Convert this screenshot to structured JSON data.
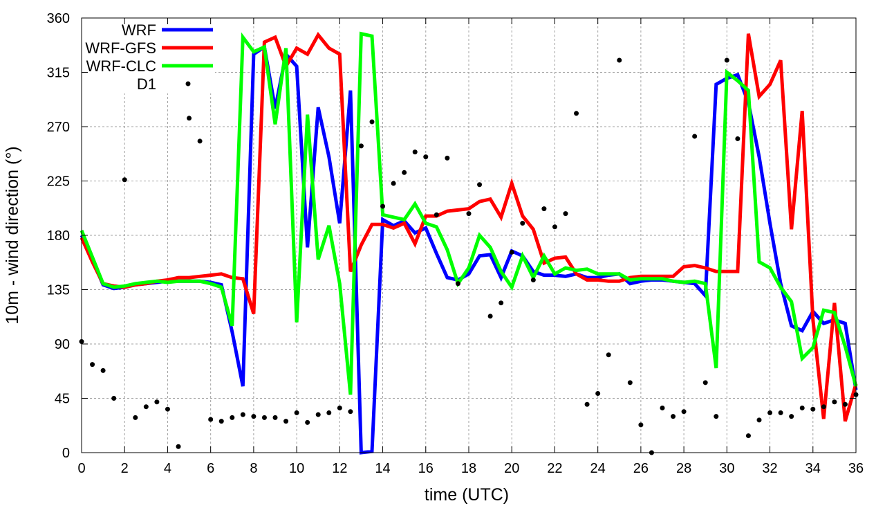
{
  "chart_data": {
    "type": "line",
    "title": "",
    "xlabel": "time (UTC)",
    "ylabel": "10m - wind direction (°)",
    "xlim": [
      0,
      36
    ],
    "ylim": [
      0,
      360
    ],
    "xticks": [
      0,
      2,
      4,
      6,
      8,
      10,
      12,
      14,
      16,
      18,
      20,
      22,
      24,
      26,
      28,
      30,
      32,
      34,
      36
    ],
    "yticks": [
      0,
      45,
      90,
      135,
      180,
      225,
      270,
      315,
      360
    ],
    "grid": true,
    "legend_position": "top-left",
    "x": [
      0,
      0.5,
      1,
      1.5,
      2,
      2.5,
      3,
      3.5,
      4,
      4.5,
      5,
      5.5,
      6,
      6.5,
      7,
      7.5,
      8,
      8.5,
      9,
      9.5,
      10,
      10.5,
      11,
      11.5,
      12,
      12.5,
      13,
      13.5,
      14,
      14.5,
      15,
      15.5,
      16,
      16.5,
      17,
      17.5,
      18,
      18.5,
      19,
      19.5,
      20,
      20.5,
      21,
      21.5,
      22,
      22.5,
      23,
      23.5,
      24,
      24.5,
      25,
      25.5,
      26,
      26.5,
      27,
      27.5,
      28,
      28.5,
      29,
      29.5,
      30,
      30.5,
      31,
      31.5,
      32,
      32.5,
      33,
      33.5,
      34,
      34.5,
      35,
      35.5,
      36
    ],
    "series": [
      {
        "name": "WRF",
        "color": "#0000ff",
        "style": "line",
        "values": [
          180,
          160,
          139,
          136,
          137,
          139,
          140,
          141,
          142,
          142,
          142,
          142,
          141,
          139,
          100,
          55,
          330,
          336,
          285,
          330,
          320,
          170,
          286,
          245,
          190,
          300,
          0,
          1,
          193,
          188,
          192,
          182,
          186,
          165,
          145,
          143,
          148,
          163,
          164,
          145,
          167,
          163,
          150,
          147,
          147,
          146,
          148,
          145,
          145,
          147,
          148,
          140,
          142,
          143,
          143,
          142,
          141,
          140,
          130,
          305,
          310,
          313,
          290,
          245,
          190,
          140,
          105,
          101,
          117,
          107,
          110,
          107,
          52
        ]
      },
      {
        "name": "WRF-GFS",
        "color": "#ff0000",
        "style": "line",
        "values": [
          178,
          158,
          140,
          138,
          137,
          139,
          140,
          142,
          143,
          145,
          145,
          146,
          147,
          148,
          145,
          144,
          115,
          340,
          344,
          320,
          335,
          330,
          346,
          335,
          330,
          150,
          172,
          189,
          189,
          186,
          190,
          173,
          196,
          196,
          200,
          201,
          202,
          208,
          210,
          195,
          223,
          196,
          185,
          157,
          161,
          162,
          148,
          143,
          143,
          142,
          142,
          145,
          146,
          146,
          146,
          146,
          154,
          155,
          153,
          150,
          150,
          150,
          347,
          295,
          305,
          325,
          185,
          283,
          110,
          28,
          124,
          26,
          57
        ]
      },
      {
        "name": "WRF-CLC",
        "color": "#00ff00",
        "style": "line",
        "values": [
          184,
          162,
          140,
          137,
          138,
          140,
          141,
          142,
          141,
          142,
          142,
          142,
          140,
          137,
          105,
          344,
          332,
          336,
          272,
          335,
          108,
          280,
          160,
          188,
          140,
          48,
          347,
          345,
          197,
          195,
          193,
          206,
          190,
          187,
          168,
          140,
          153,
          180,
          170,
          150,
          137,
          163,
          145,
          163,
          148,
          153,
          151,
          152,
          148,
          148,
          148,
          143,
          144,
          144,
          144,
          142,
          141,
          142,
          140,
          70,
          315,
          308,
          300,
          158,
          153,
          137,
          125,
          78,
          87,
          118,
          116,
          88,
          55
        ]
      },
      {
        "name": "D1",
        "color": "#000000",
        "style": "points",
        "points": [
          [
            0,
            92
          ],
          [
            0.5,
            73
          ],
          [
            1,
            68
          ],
          [
            1.5,
            45
          ],
          [
            2,
            226
          ],
          [
            2.5,
            29
          ],
          [
            3,
            38
          ],
          [
            3.5,
            42
          ],
          [
            4,
            36
          ],
          [
            4.5,
            5
          ],
          [
            5,
            277
          ],
          [
            5.5,
            258
          ],
          [
            6,
            27.5
          ],
          [
            6.5,
            26
          ],
          [
            7,
            29
          ],
          [
            7.5,
            31.5
          ],
          [
            8,
            30
          ],
          [
            8.5,
            29
          ],
          [
            9,
            29
          ],
          [
            9.5,
            26
          ],
          [
            10,
            33
          ],
          [
            10.5,
            25
          ],
          [
            11,
            31.5
          ],
          [
            11.5,
            33
          ],
          [
            12,
            37
          ],
          [
            12.5,
            34
          ],
          [
            13,
            254
          ],
          [
            13.5,
            274
          ],
          [
            14,
            204
          ],
          [
            14.5,
            223
          ],
          [
            15,
            232
          ],
          [
            15.5,
            249
          ],
          [
            16,
            245
          ],
          [
            16.5,
            197
          ],
          [
            17,
            244
          ],
          [
            17.5,
            140
          ],
          [
            18,
            198
          ],
          [
            18.5,
            222
          ],
          [
            19,
            113
          ],
          [
            19.5,
            124
          ],
          [
            20,
            166
          ],
          [
            20.5,
            190
          ],
          [
            21,
            143
          ],
          [
            21.5,
            202
          ],
          [
            22,
            187
          ],
          [
            22.5,
            198
          ],
          [
            23,
            281
          ],
          [
            23.5,
            40
          ],
          [
            24,
            49
          ],
          [
            24.5,
            81
          ],
          [
            25,
            325
          ],
          [
            25.5,
            58
          ],
          [
            26,
            23
          ],
          [
            26.5,
            0
          ],
          [
            27,
            37
          ],
          [
            27.5,
            30
          ],
          [
            28,
            34
          ],
          [
            28.5,
            262
          ],
          [
            29,
            58
          ],
          [
            29.5,
            30
          ],
          [
            30,
            325
          ],
          [
            30.5,
            260
          ],
          [
            31,
            14
          ],
          [
            31.5,
            27
          ],
          [
            32,
            33
          ],
          [
            32.5,
            33
          ],
          [
            33,
            30
          ],
          [
            33.5,
            37
          ],
          [
            34,
            36
          ],
          [
            34.5,
            38
          ],
          [
            35,
            42
          ],
          [
            35.5,
            40
          ],
          [
            36,
            48
          ]
        ]
      }
    ]
  }
}
